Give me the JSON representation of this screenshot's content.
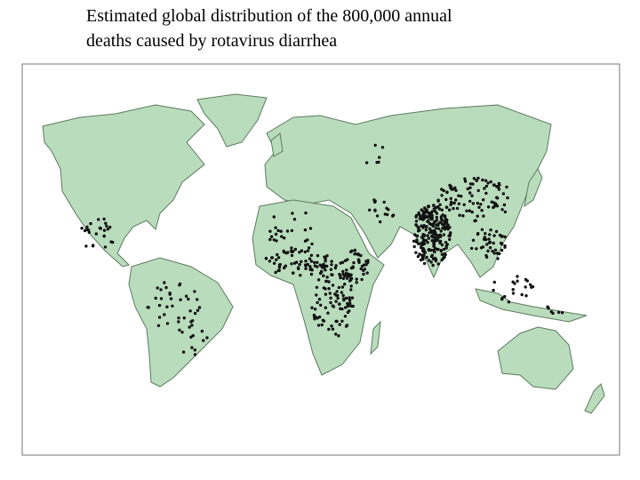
{
  "title": {
    "lines": [
      "Estimated global distribution of the 800,000 annual",
      "deaths caused by rotavirus diarrhea"
    ]
  }
}
